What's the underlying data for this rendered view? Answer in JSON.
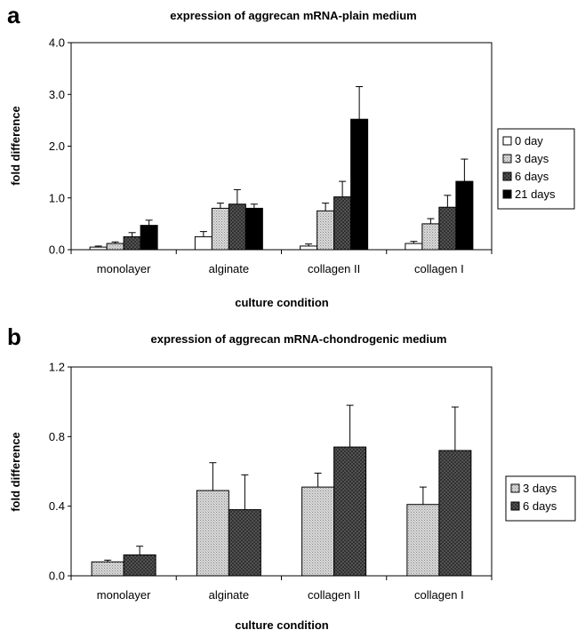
{
  "chart_data": [
    {
      "panel": "a",
      "type": "bar",
      "title": "expression of aggrecan mRNA-plain medium",
      "xlabel": "culture condition",
      "ylabel": "fold difference",
      "ylim": [
        0,
        4
      ],
      "yticks": [
        "0.0",
        "1.0",
        "2.0",
        "3.0",
        "4.0"
      ],
      "ytick_values": [
        0,
        1,
        2,
        3,
        4
      ],
      "categories": [
        "monolayer",
        "alginate",
        "collagen II",
        "collagen I"
      ],
      "series": [
        {
          "name": "0 day",
          "fill": "white",
          "values": [
            0.05,
            0.25,
            0.07,
            0.12
          ],
          "errors": [
            0.02,
            0.1,
            0.04,
            0.04
          ]
        },
        {
          "name": "3 days",
          "fill": "dots",
          "values": [
            0.12,
            0.8,
            0.75,
            0.5
          ],
          "errors": [
            0.03,
            0.1,
            0.15,
            0.1
          ]
        },
        {
          "name": "6 days",
          "fill": "cross",
          "values": [
            0.25,
            0.88,
            1.02,
            0.82
          ],
          "errors": [
            0.08,
            0.28,
            0.3,
            0.23
          ]
        },
        {
          "name": "21 days",
          "fill": "black",
          "values": [
            0.47,
            0.8,
            2.52,
            1.32
          ],
          "errors": [
            0.1,
            0.08,
            0.63,
            0.43
          ]
        }
      ],
      "legend_position": "right"
    },
    {
      "panel": "b",
      "type": "bar",
      "title": "expression of aggrecan mRNA-chondrogenic medium",
      "xlabel": "culture condition",
      "ylabel": "fold difference",
      "ylim": [
        0,
        1.2
      ],
      "yticks": [
        "0.0",
        "0.4",
        "0.8",
        "1.2"
      ],
      "ytick_values": [
        0,
        0.4,
        0.8,
        1.2
      ],
      "categories": [
        "monolayer",
        "alginate",
        "collagen II",
        "collagen I"
      ],
      "series": [
        {
          "name": "3 days",
          "fill": "dots",
          "values": [
            0.08,
            0.49,
            0.51,
            0.41
          ],
          "errors": [
            0.01,
            0.16,
            0.08,
            0.1
          ]
        },
        {
          "name": "6 days",
          "fill": "cross",
          "values": [
            0.12,
            0.38,
            0.74,
            0.72
          ],
          "errors": [
            0.05,
            0.2,
            0.24,
            0.25
          ]
        }
      ],
      "legend_position": "right"
    }
  ]
}
